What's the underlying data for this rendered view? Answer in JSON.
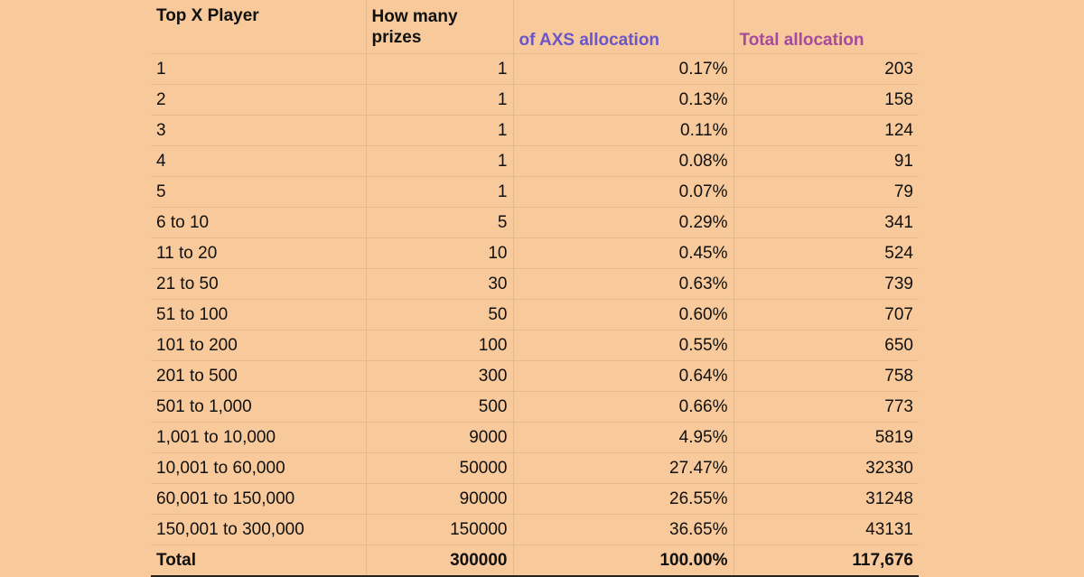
{
  "table": {
    "headers": {
      "player": "Top X Player",
      "prizes_line1": "How many",
      "prizes_line2": "prizes",
      "axs": "of AXS allocation",
      "total": "Total allocation"
    },
    "rows": [
      {
        "player": "1",
        "prizes": "1",
        "axs": "0.17%",
        "total": "203"
      },
      {
        "player": "2",
        "prizes": "1",
        "axs": "0.13%",
        "total": "158"
      },
      {
        "player": "3",
        "prizes": "1",
        "axs": "0.11%",
        "total": "124"
      },
      {
        "player": "4",
        "prizes": "1",
        "axs": "0.08%",
        "total": "91"
      },
      {
        "player": "5",
        "prizes": "1",
        "axs": "0.07%",
        "total": "79"
      },
      {
        "player": "6 to 10",
        "prizes": "5",
        "axs": "0.29%",
        "total": "341"
      },
      {
        "player": "11 to 20",
        "prizes": "10",
        "axs": "0.45%",
        "total": "524"
      },
      {
        "player": "21 to 50",
        "prizes": "30",
        "axs": "0.63%",
        "total": "739"
      },
      {
        "player": "51 to 100",
        "prizes": "50",
        "axs": "0.60%",
        "total": "707"
      },
      {
        "player": "101 to 200",
        "prizes": "100",
        "axs": "0.55%",
        "total": "650"
      },
      {
        "player": "201 to 500",
        "prizes": "300",
        "axs": "0.64%",
        "total": "758"
      },
      {
        "player": "501 to 1,000",
        "prizes": "500",
        "axs": "0.66%",
        "total": "773"
      },
      {
        "player": "1,001 to 10,000",
        "prizes": "9000",
        "axs": "4.95%",
        "total": "5819"
      },
      {
        "player": "10,001 to 60,000",
        "prizes": "50000",
        "axs": "27.47%",
        "total": "32330"
      },
      {
        "player": "60,001 to 150,000",
        "prizes": "90000",
        "axs": "26.55%",
        "total": "31248"
      },
      {
        "player": "150,001 to 300,000",
        "prizes": "150000",
        "axs": "36.65%",
        "total": "43131"
      }
    ],
    "totals": {
      "player": "Total",
      "prizes": "300000",
      "axs": "100.00%",
      "total": "117,676"
    }
  },
  "colors": {
    "background": "#f8c99a",
    "axs_header": "#6a55c9",
    "total_header": "#a64aa0",
    "gridline": "#e6b98c"
  }
}
